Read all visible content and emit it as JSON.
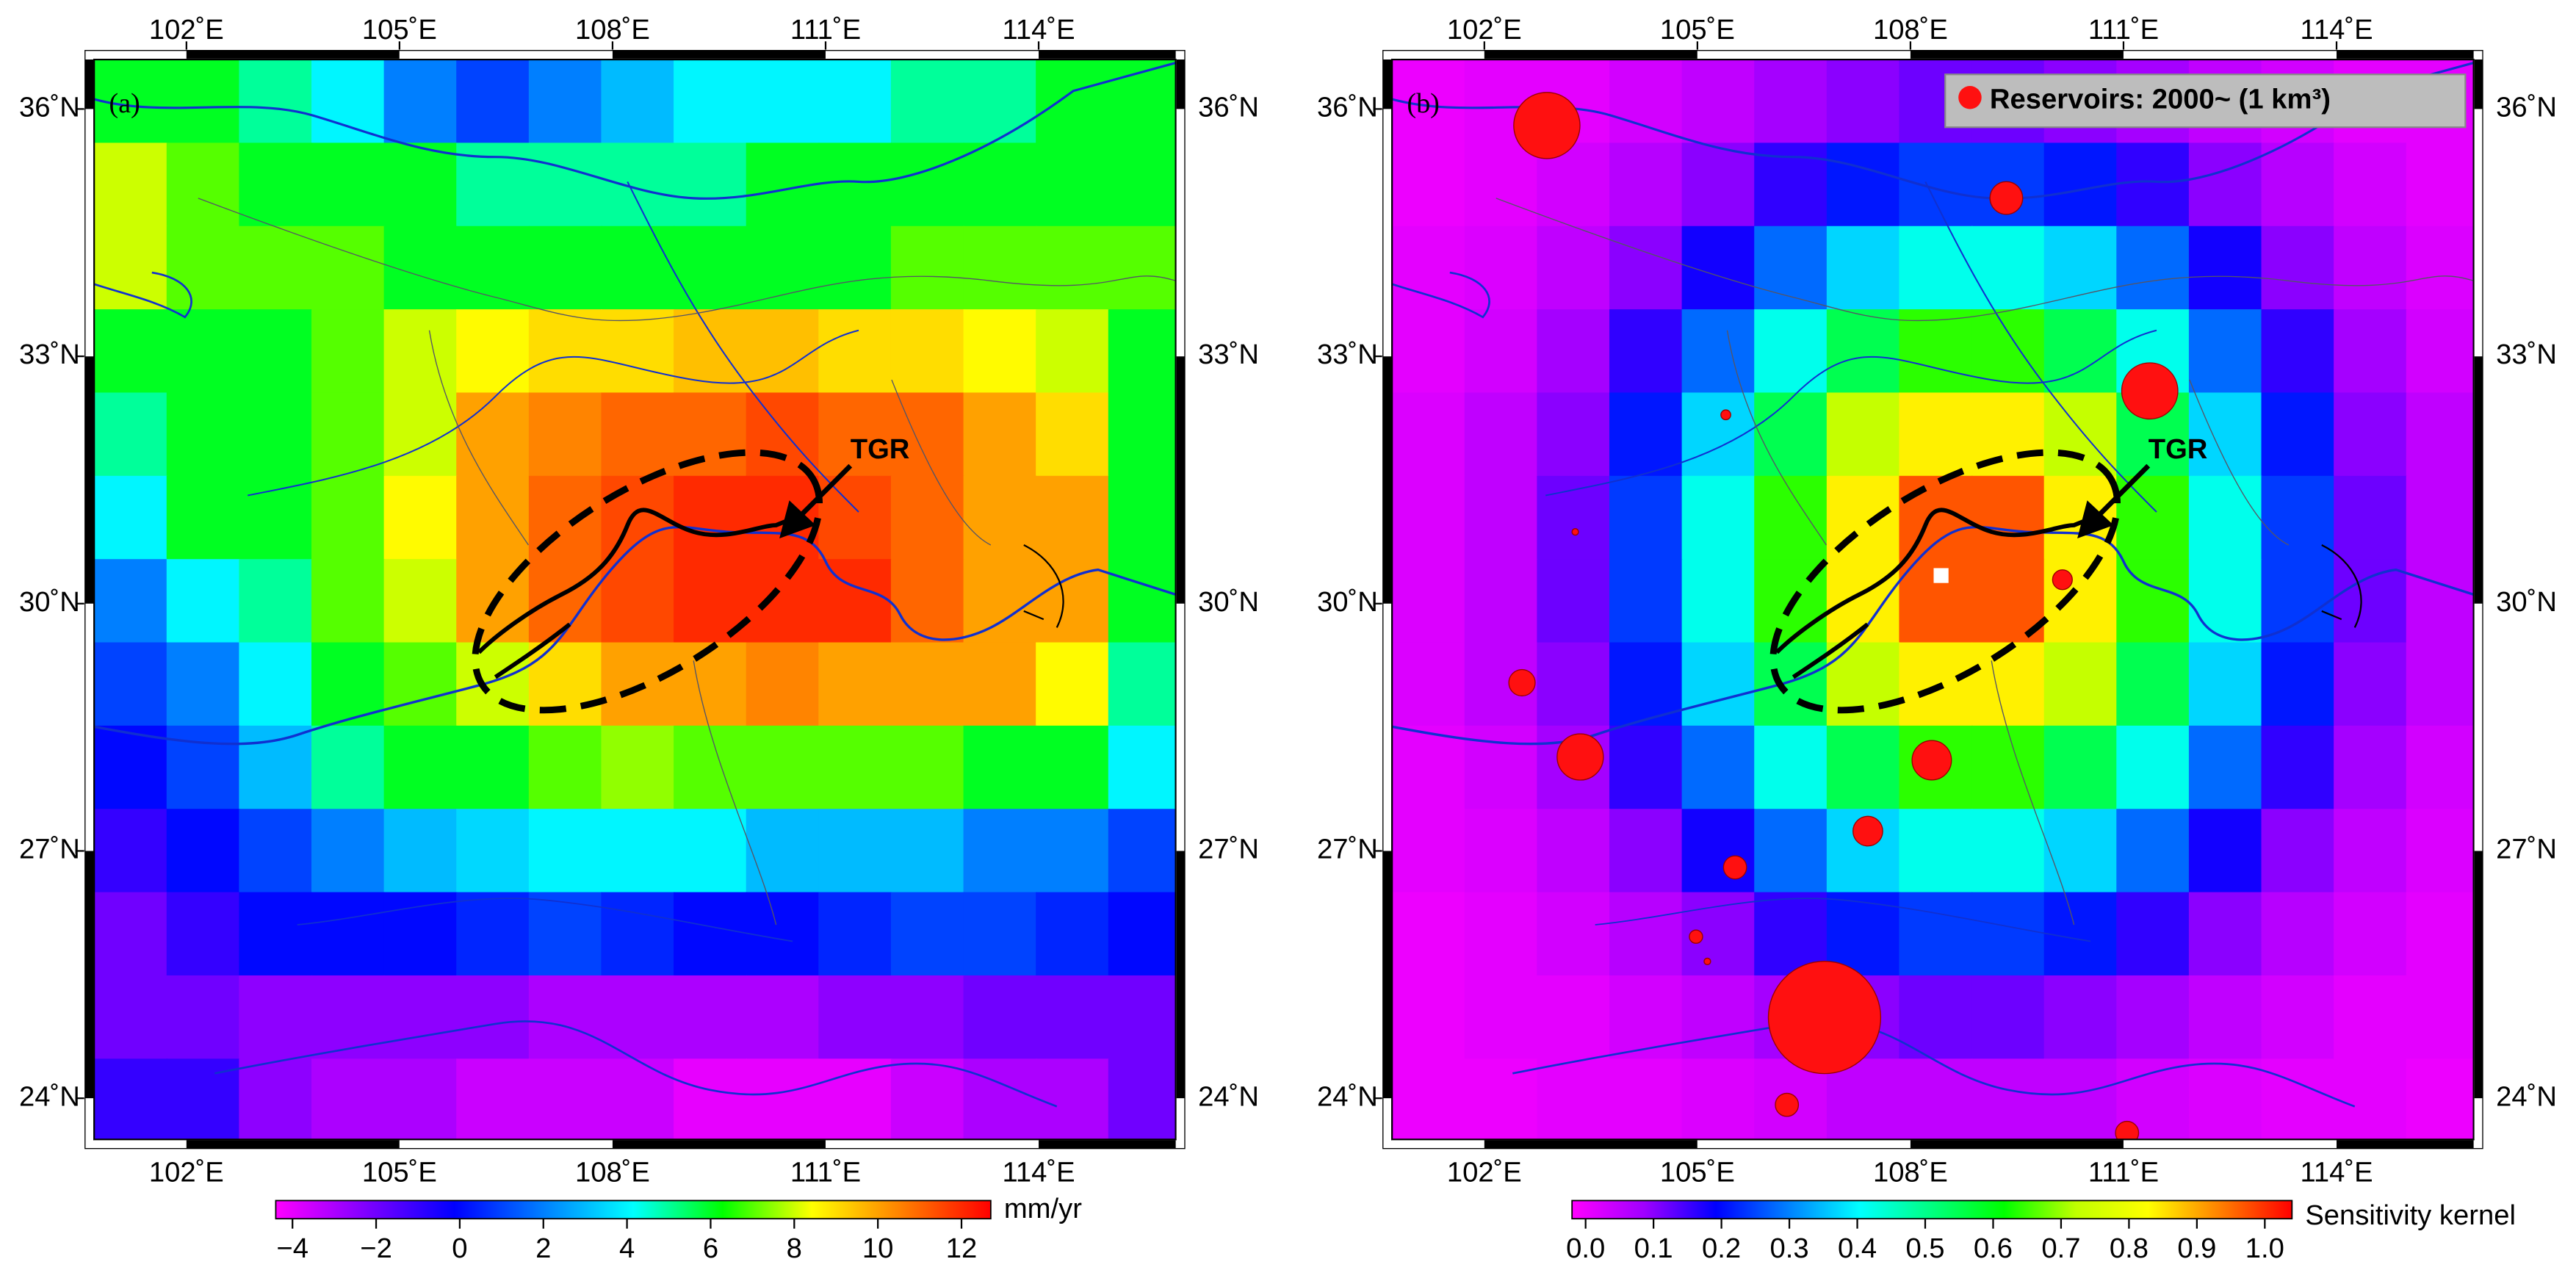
{
  "xlim": [
    100.7,
    115.93
  ],
  "ylim": [
    23.5,
    36.6
  ],
  "xticks": [
    {
      "value": 102,
      "label": "102˚E"
    },
    {
      "value": 105,
      "label": "105˚E"
    },
    {
      "value": 108,
      "label": "108˚E"
    },
    {
      "value": 111,
      "label": "111˚E"
    },
    {
      "value": 114,
      "label": "114˚E"
    }
  ],
  "yticks": [
    {
      "value": 24,
      "label": "24˚N"
    },
    {
      "value": 27,
      "label": "27˚N"
    },
    {
      "value": 30,
      "label": "30˚N"
    },
    {
      "value": 33,
      "label": "33˚N"
    },
    {
      "value": 36,
      "label": "36˚N"
    }
  ],
  "panels": [
    {
      "label": "(a)",
      "annotation": "TGR",
      "grid": {
        "lon_start": 100.7,
        "lat_top": 36.6,
        "lon_step": 1.02,
        "lat_step": 1.01,
        "values": [
          [
            6,
            6,
            5,
            4,
            2,
            1,
            2,
            3,
            4,
            4,
            4,
            5,
            5,
            6,
            6
          ],
          [
            8,
            7,
            6,
            6,
            6,
            5,
            5,
            5,
            5,
            6,
            6,
            6,
            6,
            6,
            6
          ],
          [
            8,
            7,
            7,
            7,
            6,
            6,
            6,
            6,
            6,
            6,
            6,
            7,
            7,
            7,
            7
          ],
          [
            6,
            6,
            6,
            7,
            8,
            8.5,
            9,
            9,
            9.5,
            9.5,
            9,
            9,
            8.5,
            8,
            6
          ],
          [
            5,
            6,
            6,
            7,
            8,
            10,
            10.5,
            11,
            11,
            11.5,
            11,
            11,
            10,
            9,
            6
          ],
          [
            4,
            6,
            6,
            7,
            8.5,
            10,
            11,
            11.5,
            12,
            12,
            11.5,
            11,
            10,
            10,
            6
          ],
          [
            2,
            4,
            5,
            7,
            8,
            10,
            11,
            11.5,
            12,
            12,
            12,
            11,
            10,
            10,
            6
          ],
          [
            1,
            2,
            4,
            6,
            7,
            8,
            9,
            10,
            10,
            10.5,
            10,
            10,
            10,
            8.5,
            5
          ],
          [
            0,
            1,
            3,
            5,
            6,
            6,
            7,
            7.5,
            7,
            7,
            7,
            7,
            6,
            6,
            4
          ],
          [
            -1,
            0,
            1,
            2,
            3,
            3.5,
            4,
            4,
            4,
            3,
            3,
            3,
            2,
            2,
            1
          ],
          [
            -2,
            -1,
            0,
            0,
            0,
            0.5,
            1,
            0.5,
            0,
            0,
            0.5,
            1,
            1,
            0.5,
            0
          ],
          [
            -2,
            -2,
            -2.5,
            -2.5,
            -2.5,
            -2.5,
            -3,
            -3,
            -3,
            -3,
            -2.5,
            -2.5,
            -2,
            -2,
            -2
          ],
          [
            -1,
            -1,
            -2.5,
            -3,
            -3,
            -3.5,
            -3.5,
            -3.5,
            -4,
            -4,
            -4,
            -3.5,
            -3,
            -3,
            -2
          ]
        ]
      },
      "colorbar": {
        "clim": [
          -4.4,
          12.7
        ],
        "colors": [
          "#ff00ff",
          "#8000ff",
          "#0000ff",
          "#0080ff",
          "#00ffff",
          "#00ff00",
          "#ffff00",
          "#ff8000",
          "#ff0000"
        ],
        "ticks": [
          {
            "value": -4,
            "label": "−4"
          },
          {
            "value": -2,
            "label": "−2"
          },
          0,
          2,
          4,
          6,
          8,
          10,
          12
        ],
        "label": "mm/yr"
      }
    },
    {
      "label": "(b)",
      "annotation": "TGR",
      "legend": "Reservoirs: 2000~ (1 km³)",
      "grid": {
        "lon_start": 100.7,
        "lat_top": 36.6,
        "lon_step": 1.02,
        "lat_step": 1.01,
        "values": [
          [
            0,
            0.01,
            0.01,
            0.03,
            0.05,
            0.08,
            0.1,
            0.12,
            0.12,
            0.1,
            0.08,
            0.05,
            0.03,
            0.01,
            0.01
          ],
          [
            0,
            0.01,
            0.03,
            0.06,
            0.1,
            0.16,
            0.21,
            0.24,
            0.24,
            0.21,
            0.16,
            0.1,
            0.06,
            0.03,
            0.01
          ],
          [
            0.01,
            0.02,
            0.05,
            0.1,
            0.18,
            0.28,
            0.37,
            0.42,
            0.42,
            0.37,
            0.28,
            0.18,
            0.1,
            0.05,
            0.02
          ],
          [
            0.01,
            0.03,
            0.08,
            0.16,
            0.28,
            0.42,
            0.55,
            0.64,
            0.64,
            0.55,
            0.42,
            0.28,
            0.16,
            0.08,
            0.03
          ],
          [
            0.02,
            0.05,
            0.1,
            0.21,
            0.37,
            0.55,
            0.73,
            0.84,
            0.84,
            0.73,
            0.55,
            0.37,
            0.21,
            0.1,
            0.05
          ],
          [
            0.02,
            0.05,
            0.12,
            0.24,
            0.42,
            0.64,
            0.84,
            0.97,
            0.97,
            0.84,
            0.64,
            0.42,
            0.24,
            0.12,
            0.05
          ],
          [
            0.02,
            0.05,
            0.12,
            0.24,
            0.42,
            0.64,
            0.84,
            0.97,
            0.97,
            0.84,
            0.64,
            0.42,
            0.24,
            0.12,
            0.05
          ],
          [
            0.02,
            0.05,
            0.1,
            0.21,
            0.37,
            0.55,
            0.73,
            0.84,
            0.84,
            0.73,
            0.55,
            0.37,
            0.21,
            0.1,
            0.05
          ],
          [
            0.01,
            0.03,
            0.08,
            0.16,
            0.28,
            0.42,
            0.55,
            0.64,
            0.64,
            0.55,
            0.42,
            0.28,
            0.16,
            0.08,
            0.03
          ],
          [
            0.01,
            0.02,
            0.05,
            0.1,
            0.18,
            0.28,
            0.37,
            0.42,
            0.42,
            0.37,
            0.28,
            0.18,
            0.1,
            0.05,
            0.02
          ],
          [
            0,
            0.01,
            0.03,
            0.06,
            0.1,
            0.16,
            0.21,
            0.24,
            0.24,
            0.21,
            0.16,
            0.1,
            0.06,
            0.03,
            0.01
          ],
          [
            0,
            0.01,
            0.01,
            0.03,
            0.05,
            0.08,
            0.1,
            0.12,
            0.12,
            0.1,
            0.08,
            0.05,
            0.03,
            0.01,
            0.01
          ],
          [
            0,
            0,
            0.01,
            0.01,
            0.02,
            0.03,
            0.05,
            0.05,
            0.05,
            0.05,
            0.03,
            0.02,
            0.01,
            0.01,
            0
          ]
        ]
      },
      "colorbar": {
        "clim": [
          -0.02,
          1.04
        ],
        "colors": [
          "#ff00ff",
          "#a000ff",
          "#0000ff",
          "#0080ff",
          "#00ffff",
          "#00ff80",
          "#00ff00",
          "#c0ff00",
          "#ffff00",
          "#ff8000",
          "#ff0000"
        ],
        "ticks": [
          {
            "value": 0,
            "label": "0.0"
          },
          0.1,
          0.2,
          0.3,
          0.4,
          0.5,
          0.6,
          0.7,
          0.8,
          0.9,
          {
            "value": 1,
            "label": "1.0"
          }
        ],
        "label": "Sensitivity kernel"
      },
      "reservoirs": [
        {
          "lon": 102.88,
          "lat": 35.8,
          "volume": 8.2
        },
        {
          "lon": 109.35,
          "lat": 34.92,
          "volume": 2
        },
        {
          "lon": 111.37,
          "lat": 32.58,
          "volume": 5.9
        },
        {
          "lon": 105.4,
          "lat": 32.29,
          "volume": 0.18
        },
        {
          "lon": 103.28,
          "lat": 30.87,
          "volume": 0.08
        },
        {
          "lon": 110.14,
          "lat": 30.29,
          "volume": 0.73
        },
        {
          "lon": 102.53,
          "lat": 29.04,
          "volume": 1.3
        },
        {
          "lon": 103.35,
          "lat": 28.14,
          "volume": 4
        },
        {
          "lon": 108.3,
          "lat": 28.1,
          "volume": 2.9
        },
        {
          "lon": 107.4,
          "lat": 27.24,
          "volume": 1.65
        },
        {
          "lon": 105.53,
          "lat": 26.8,
          "volume": 1
        },
        {
          "lon": 104.98,
          "lat": 25.96,
          "volume": 0.33
        },
        {
          "lon": 105.14,
          "lat": 25.66,
          "volume": 0.08
        },
        {
          "lon": 106.79,
          "lat": 24.98,
          "volume": 23.6
        },
        {
          "lon": 106.26,
          "lat": 23.92,
          "volume": 1
        },
        {
          "lon": 111.05,
          "lat": 23.58,
          "volume": 1
        }
      ]
    }
  ]
}
